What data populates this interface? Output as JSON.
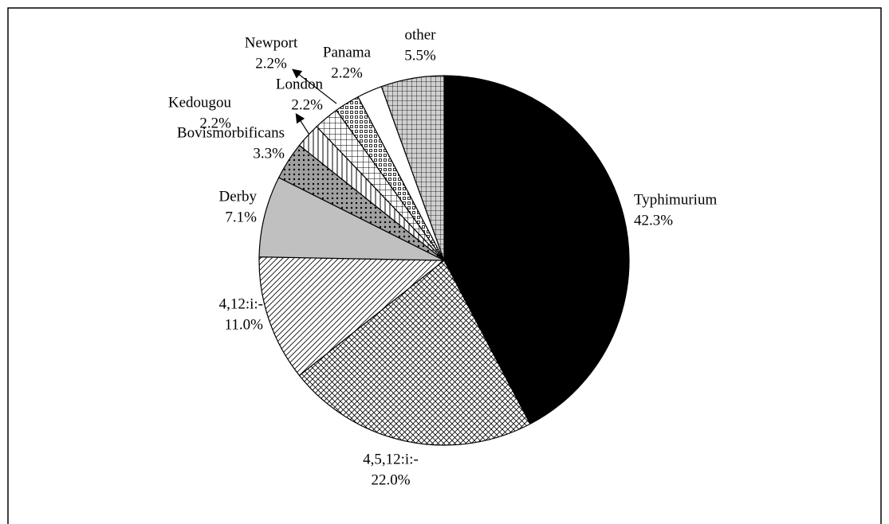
{
  "chart_data": {
    "type": "pie",
    "categories": [
      "Typhimurium",
      "4,5,12:i:-",
      "4,12:i:-",
      "Derby",
      "Bovismorbificans",
      "Kedougou",
      "London",
      "Newport",
      "Panama",
      "other"
    ],
    "values": [
      42.3,
      22.0,
      11.0,
      7.1,
      3.3,
      2.2,
      2.2,
      2.2,
      2.2,
      5.5
    ],
    "value_labels": [
      "42.3%",
      "22.0%",
      "11.0%",
      "7.1%",
      "3.3%",
      "2.2%",
      "2.2%",
      "2.2%",
      "2.2%",
      "5.5%"
    ],
    "colors": [
      "#000000",
      "#ffffff",
      "#ffffff",
      "#c0c0c0",
      "#a0a0a0",
      "#ffffff",
      "#ffffff",
      "#ffffff",
      "#ffffff",
      "#d0d0d0"
    ]
  }
}
